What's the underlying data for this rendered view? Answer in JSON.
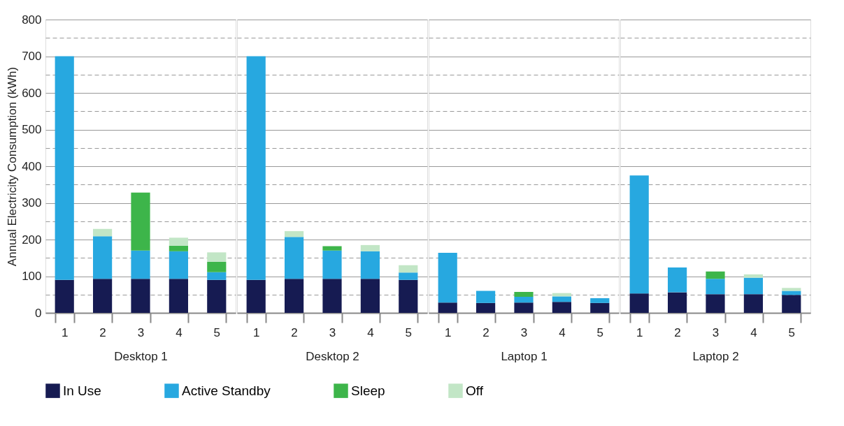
{
  "chart_data": [
    {
      "type": "bar",
      "stacked": true,
      "ylabel": "Annual Electricity Consumption (kWh)",
      "xlabel": "Desktop 1",
      "categories": [
        "1",
        "2",
        "3",
        "4",
        "5"
      ],
      "legend": "bottom",
      "grid": "y",
      "ylim": [
        0,
        800
      ],
      "yticks": [
        0,
        {
          "value": 50,
          "label": null
        },
        100,
        {
          "value": 150,
          "label": null
        },
        200,
        {
          "value": 250,
          "label": null
        },
        300,
        {
          "value": 350,
          "label": null
        },
        400,
        {
          "value": 450,
          "label": null
        },
        500,
        {
          "value": 550,
          "label": null
        },
        600,
        {
          "value": 650,
          "label": null
        },
        700,
        {
          "value": 750,
          "label": null
        },
        800
      ],
      "series": [
        {
          "name": "In Use",
          "color": "#161b52",
          "values": [
            90,
            93,
            93,
            93,
            90
          ]
        },
        {
          "name": "Active Standby",
          "color": "#27a8e0",
          "values": [
            610,
            116,
            77,
            75,
            21
          ]
        },
        {
          "name": "Sleep",
          "color": "#3db54a",
          "values": [
            null,
            null,
            158,
            15,
            28
          ]
        },
        {
          "name": "Off",
          "color": "#c2e6c6",
          "values": [
            null,
            20,
            null,
            22,
            26
          ]
        }
      ]
    },
    {
      "type": "bar",
      "stacked": true,
      "xlabel": "Desktop 2",
      "categories": [
        "1",
        "2",
        "3",
        "4",
        "5"
      ],
      "legend": "bottom",
      "grid": "y",
      "tick_labels": "x",
      "ylim": [
        0,
        800
      ],
      "yticks": [
        0,
        {
          "value": 50,
          "label": null
        },
        100,
        {
          "value": 150,
          "label": null
        },
        200,
        {
          "value": 250,
          "label": null
        },
        300,
        {
          "value": 350,
          "label": null
        },
        400,
        {
          "value": 450,
          "label": null
        },
        500,
        {
          "value": 550,
          "label": null
        },
        600,
        {
          "value": 650,
          "label": null
        },
        700,
        {
          "value": 750,
          "label": null
        },
        800
      ],
      "series": [
        {
          "name": "In Use",
          "color": "#161b52",
          "values": [
            90,
            93,
            93,
            93,
            90
          ]
        },
        {
          "name": "Active Standby",
          "color": "#27a8e0",
          "values": [
            610,
            114,
            77,
            75,
            20
          ]
        },
        {
          "name": "Sleep",
          "color": "#3db54a",
          "values": [
            null,
            null,
            12,
            null,
            null
          ]
        },
        {
          "name": "Off",
          "color": "#c2e6c6",
          "values": [
            null,
            16,
            null,
            17,
            20
          ]
        }
      ]
    },
    {
      "type": "bar",
      "stacked": true,
      "xlabel": "Laptop 1",
      "categories": [
        "1",
        "2",
        "3",
        "4",
        "5"
      ],
      "legend": "bottom",
      "grid": "y",
      "tick_labels": "x",
      "ylim": [
        0,
        800
      ],
      "yticks": [
        0,
        {
          "value": 50,
          "label": null
        },
        100,
        {
          "value": 150,
          "label": null
        },
        200,
        {
          "value": 250,
          "label": null
        },
        300,
        {
          "value": 350,
          "label": null
        },
        400,
        {
          "value": 450,
          "label": null
        },
        500,
        {
          "value": 550,
          "label": null
        },
        600,
        {
          "value": 650,
          "label": null
        },
        700,
        {
          "value": 750,
          "label": null
        },
        800
      ],
      "series": [
        {
          "name": "In Use",
          "color": "#161b52",
          "values": [
            28,
            27,
            28,
            30,
            27
          ]
        },
        {
          "name": "Active Standby",
          "color": "#27a8e0",
          "values": [
            136,
            33,
            16,
            15,
            13
          ]
        },
        {
          "name": "Sleep",
          "color": "#3db54a",
          "values": [
            null,
            null,
            13,
            null,
            null
          ]
        },
        {
          "name": "Off",
          "color": "#c2e6c6",
          "values": [
            null,
            null,
            null,
            9,
            null
          ]
        }
      ]
    },
    {
      "type": "bar",
      "stacked": true,
      "xlabel": "Laptop 2",
      "categories": [
        "1",
        "2",
        "3",
        "4",
        "5"
      ],
      "legend": "bottom",
      "grid": "y",
      "tick_labels": "x",
      "ylim": [
        0,
        800
      ],
      "yticks": [
        0,
        {
          "value": 50,
          "label": null
        },
        100,
        {
          "value": 150,
          "label": null
        },
        200,
        {
          "value": 250,
          "label": null
        },
        300,
        {
          "value": 350,
          "label": null
        },
        400,
        {
          "value": 450,
          "label": null
        },
        500,
        {
          "value": 550,
          "label": null
        },
        600,
        {
          "value": 650,
          "label": null
        },
        700,
        {
          "value": 750,
          "label": null
        },
        800
      ],
      "series": [
        {
          "name": "In Use",
          "color": "#161b52",
          "values": [
            53,
            56,
            51,
            51,
            49
          ]
        },
        {
          "name": "Active Standby",
          "color": "#27a8e0",
          "values": [
            322,
            68,
            42,
            45,
            11
          ]
        },
        {
          "name": "Sleep",
          "color": "#3db54a",
          "values": [
            null,
            null,
            20,
            null,
            null
          ]
        },
        {
          "name": "Off",
          "color": "#c2e6c6",
          "values": [
            null,
            null,
            null,
            9,
            8
          ]
        }
      ]
    }
  ]
}
